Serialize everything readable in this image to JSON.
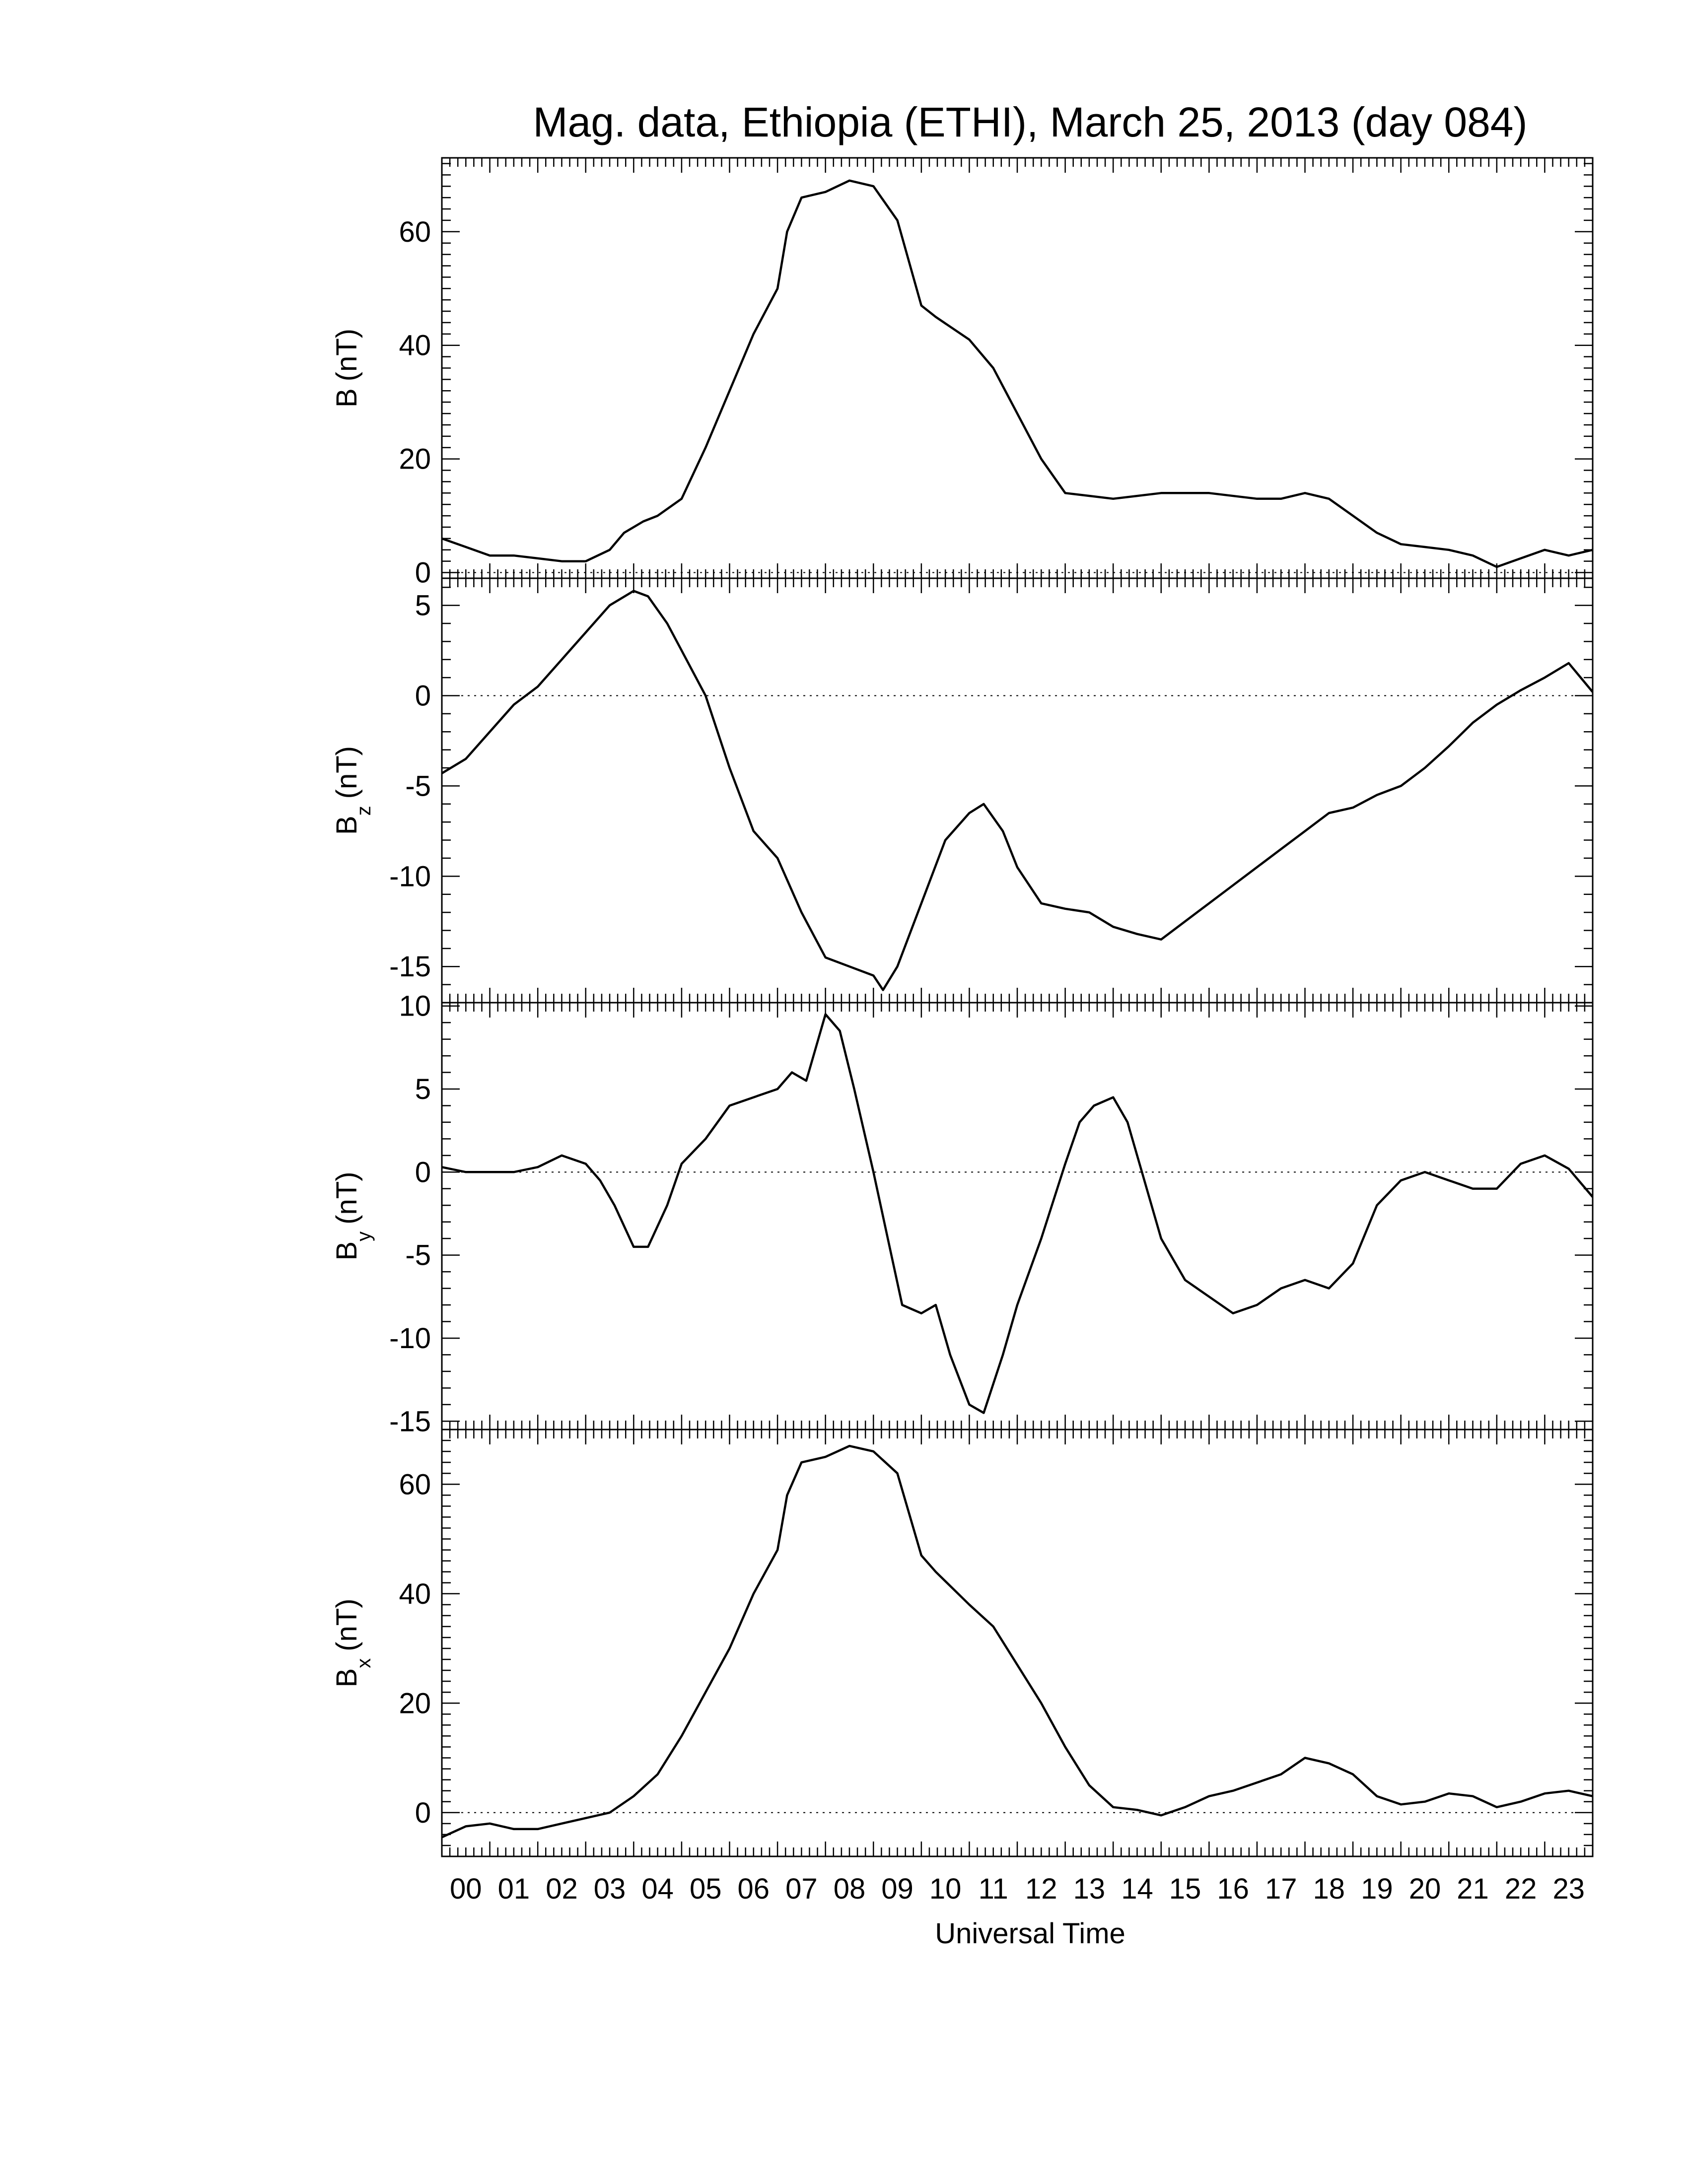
{
  "chart_data": {
    "type": "line",
    "title": "Mag. data, Ethiopia (ETHI), March 25, 2013 (day 084)",
    "xlabel": "Universal Time",
    "x_tick_labels": [
      "00",
      "01",
      "02",
      "03",
      "04",
      "05",
      "06",
      "07",
      "08",
      "09",
      "10",
      "11",
      "12",
      "13",
      "14",
      "15",
      "16",
      "17",
      "18",
      "19",
      "20",
      "21",
      "22",
      "23"
    ],
    "xlim": [
      0,
      24
    ],
    "line_color": "#000000",
    "zero_line": "dotted",
    "panels": [
      {
        "id": "B",
        "ylabel_main": "B",
        "ylabel_sub": "",
        "ylabel_unit": "(nT)",
        "ylim": [
          -1,
          73
        ],
        "yticks": [
          0,
          20,
          40,
          60
        ],
        "y_tick_labels": [
          "0",
          "20",
          "40",
          "60"
        ],
        "series": [
          {
            "x": [
              0,
              0.5,
              1,
              1.5,
              2,
              2.5,
              3,
              3.5,
              3.8,
              4.2,
              4.5,
              5,
              5.5,
              6,
              6.5,
              7,
              7.2,
              7.5,
              8,
              8.5,
              9,
              9.5,
              10,
              10.3,
              11,
              11.5,
              12,
              12.5,
              13,
              13.5,
              14,
              15,
              16,
              17,
              17.5,
              18,
              18.5,
              19,
              19.5,
              20,
              20.5,
              21,
              21.5,
              22,
              22.5,
              23,
              23.5,
              24
            ],
            "y": [
              6,
              4.5,
              3,
              3,
              2.5,
              2,
              2,
              4,
              7,
              9,
              10,
              13,
              22,
              32,
              42,
              50,
              60,
              66,
              67,
              69,
              68,
              62,
              47,
              45,
              41,
              36,
              28,
              20,
              14,
              13.5,
              13,
              14,
              14,
              13,
              13,
              14,
              13,
              10,
              7,
              5,
              4.5,
              4,
              3,
              1,
              2.5,
              4,
              3,
              4
            ]
          }
        ]
      },
      {
        "id": "Bz",
        "ylabel_main": "B",
        "ylabel_sub": "z",
        "ylabel_unit": "(nT)",
        "ylim": [
          -17,
          6.5
        ],
        "yticks": [
          5,
          0,
          -5,
          -10,
          -15
        ],
        "y_tick_labels": [
          "5",
          "0",
          "-5",
          "-10",
          "-15"
        ],
        "series": [
          {
            "x": [
              0,
              0.5,
              1,
              1.5,
              2,
              2.5,
              3,
              3.5,
              4,
              4.3,
              4.7,
              5,
              5.5,
              6,
              6.5,
              7,
              7.5,
              8,
              8.5,
              9,
              9.2,
              9.5,
              10,
              10.5,
              11,
              11.3,
              11.7,
              12,
              12.5,
              13,
              13.5,
              14,
              14.5,
              15,
              15.5,
              16,
              16.5,
              17,
              17.5,
              18,
              18.5,
              19,
              19.5,
              20,
              20.5,
              21,
              21.5,
              22,
              22.5,
              23,
              23.5,
              24
            ],
            "y": [
              -4.3,
              -3.5,
              -2,
              -0.5,
              0.5,
              2,
              3.5,
              5,
              5.8,
              5.5,
              4,
              2.5,
              0,
              -4,
              -7.5,
              -9,
              -12,
              -14.5,
              -15,
              -15.5,
              -16.3,
              -15,
              -11.5,
              -8,
              -6.5,
              -6,
              -7.5,
              -9.5,
              -11.5,
              -11.8,
              -12,
              -12.8,
              -13.2,
              -13.5,
              -12.5,
              -11.5,
              -10.5,
              -9.5,
              -8.5,
              -7.5,
              -6.5,
              -6.2,
              -5.5,
              -5,
              -4,
              -2.8,
              -1.5,
              -0.5,
              0.3,
              1,
              1.8,
              0.2
            ]
          }
        ]
      },
      {
        "id": "By",
        "ylabel_main": "B",
        "ylabel_sub": "y",
        "ylabel_unit": "(nT)",
        "ylim": [
          -15.5,
          10.2
        ],
        "yticks": [
          10,
          5,
          0,
          -5,
          -10,
          -15
        ],
        "y_tick_labels": [
          "10",
          "5",
          "0",
          "-5",
          "-10",
          "-15"
        ],
        "series": [
          {
            "x": [
              0,
              0.5,
              1,
              1.5,
              2,
              2.5,
              3,
              3.3,
              3.6,
              4,
              4.3,
              4.7,
              5,
              5.5,
              6,
              6.5,
              7,
              7.3,
              7.6,
              8,
              8.3,
              8.6,
              9,
              9.3,
              9.6,
              10,
              10.3,
              10.6,
              11,
              11.3,
              11.7,
              12,
              12.5,
              13,
              13.3,
              13.6,
              14,
              14.3,
              14.6,
              15,
              15.5,
              16,
              16.5,
              17,
              17.5,
              18,
              18.5,
              19,
              19.5,
              20,
              20.5,
              21,
              21.5,
              22,
              22.5,
              23,
              23.5,
              24
            ],
            "y": [
              0.3,
              0,
              0,
              0,
              0.3,
              1,
              0.5,
              -0.5,
              -2,
              -4.5,
              -4.5,
              -2,
              0.5,
              2,
              4,
              4.5,
              5,
              6,
              5.5,
              9.5,
              8.5,
              5,
              0,
              -4,
              -8,
              -8.5,
              -8,
              -11,
              -14,
              -14.5,
              -11,
              -8,
              -4,
              0.5,
              3,
              4,
              4.5,
              3,
              0,
              -4,
              -6.5,
              -7.5,
              -8.5,
              -8,
              -7,
              -6.5,
              -7,
              -5.5,
              -2,
              -0.5,
              0,
              -0.5,
              -1,
              -1,
              0.5,
              1,
              0.2,
              -1.5
            ]
          }
        ]
      },
      {
        "id": "Bx",
        "ylabel_main": "B",
        "ylabel_sub": "x",
        "ylabel_unit": "(nT)",
        "ylim": [
          -8,
          70
        ],
        "yticks": [
          0,
          20,
          40,
          60
        ],
        "y_tick_labels": [
          "0",
          "20",
          "40",
          "60"
        ],
        "series": [
          {
            "x": [
              0,
              0.5,
              1,
              1.5,
              2,
              2.5,
              3,
              3.5,
              4,
              4.5,
              5,
              5.5,
              6,
              6.5,
              7,
              7.2,
              7.5,
              8,
              8.5,
              9,
              9.5,
              10,
              10.3,
              11,
              11.5,
              12,
              12.5,
              13,
              13.5,
              14,
              14.5,
              15,
              15.5,
              16,
              16.5,
              17,
              17.5,
              18,
              18.5,
              19,
              19.5,
              20,
              20.5,
              21,
              21.5,
              22,
              22.5,
              23,
              23.5,
              24
            ],
            "y": [
              -4.5,
              -2.5,
              -2,
              -3,
              -3,
              -2,
              -1,
              0,
              3,
              7,
              14,
              22,
              30,
              40,
              48,
              58,
              64,
              65,
              67,
              66,
              62,
              47,
              44,
              38,
              34,
              27,
              20,
              12,
              5,
              1,
              0.5,
              -0.5,
              1,
              3,
              4,
              5.5,
              7,
              10,
              9,
              7,
              3,
              1.5,
              2,
              3.5,
              3,
              1,
              2,
              3.5,
              4,
              3
            ]
          }
        ]
      }
    ]
  }
}
